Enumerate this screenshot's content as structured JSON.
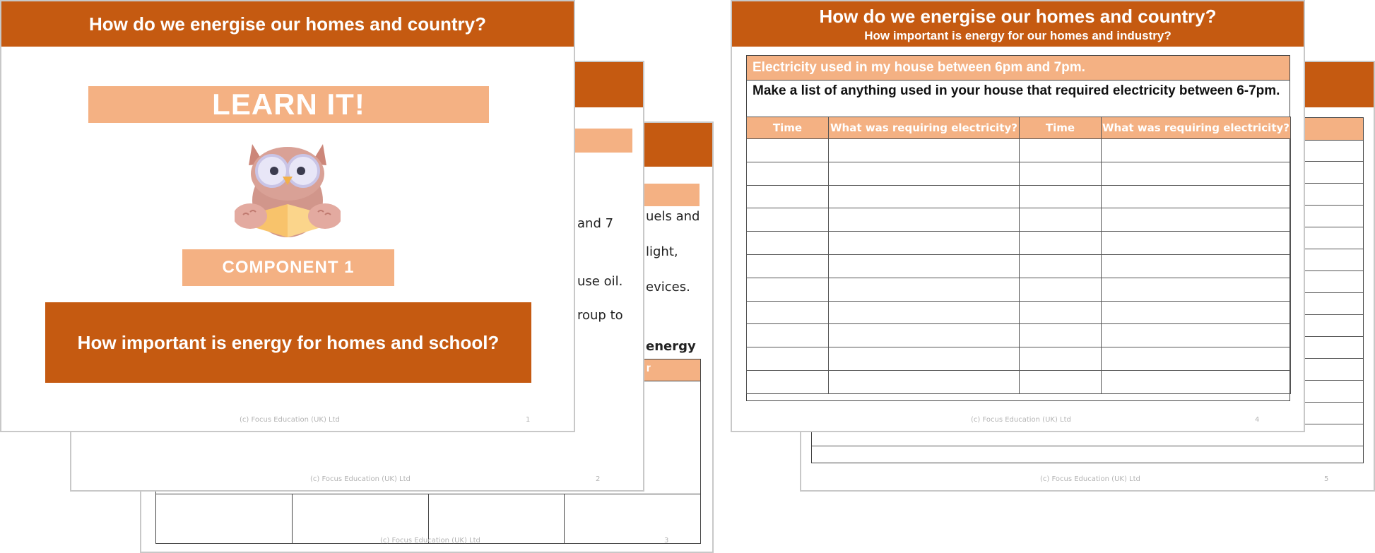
{
  "left_deck": {
    "slide1": {
      "title": "How do we energise our homes and country?",
      "learn_banner": "LEARN IT!",
      "component_badge": "COMPONENT 1",
      "question": "How important is energy for homes and school?",
      "footer": "(c) Focus Education (UK) Ltd",
      "page": "1",
      "owl_icon": "owl-reading-book-icon"
    },
    "slide2": {
      "text_fragments": [
        "and 7",
        "use oil.",
        "roup to"
      ],
      "footer": "(c) Focus Education (UK) Ltd",
      "page": "2"
    },
    "slide3": {
      "text_fragments": [
        "uels and",
        "light,",
        "evices.",
        "energy"
      ],
      "table_header_fragment": "r",
      "footer": "(c) Focus Education (UK) Ltd",
      "page": "3"
    }
  },
  "right_deck": {
    "slide4": {
      "title": "How do we energise our homes and country?",
      "subtitle": "How important is energy for our homes and industry?",
      "section_bar": "Electricity used in my house between 6pm and 7pm.",
      "instruction": "Make a list of anything used in your house that required electricity between 6-7pm.",
      "columns": [
        "Time",
        "What was requiring electricity?",
        "Time",
        "What was requiring electricity?"
      ],
      "empty_rows": 11,
      "footer": "(c) Focus Education (UK) Ltd",
      "page": "4"
    },
    "slide5": {
      "footer": "(c) Focus Education (UK) Ltd",
      "page": "5"
    }
  },
  "colors": {
    "header_orange": "#c55a11",
    "peach": "#f4b183",
    "border_gray": "#c8c8c8"
  }
}
